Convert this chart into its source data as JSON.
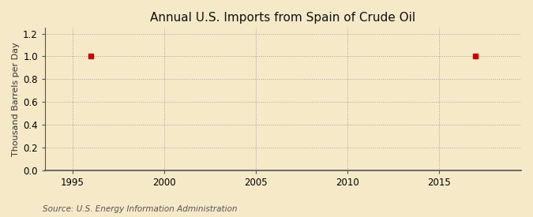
{
  "title": "Annual U.S. Imports from Spain of Crude Oil",
  "ylabel": "Thousand Barrels per Day",
  "source": "Source: U.S. Energy Information Administration",
  "background_color": "#f5e9c8",
  "plot_bg_color": "#f5e9c8",
  "data_points_x": [
    1996,
    2017
  ],
  "data_points_y": [
    1.0,
    1.0
  ],
  "marker_color": "#cc0000",
  "marker_style": "s",
  "marker_size": 4,
  "xlim": [
    1993.5,
    2019.5
  ],
  "ylim": [
    0.0,
    1.25
  ],
  "xticks": [
    1995,
    2000,
    2005,
    2010,
    2015
  ],
  "yticks": [
    0.0,
    0.2,
    0.4,
    0.6,
    0.8,
    1.0,
    1.2
  ],
  "grid_color": "#999999",
  "grid_style": ":",
  "grid_alpha": 0.9,
  "title_fontsize": 11,
  "label_fontsize": 8,
  "tick_fontsize": 8.5,
  "source_fontsize": 7.5
}
